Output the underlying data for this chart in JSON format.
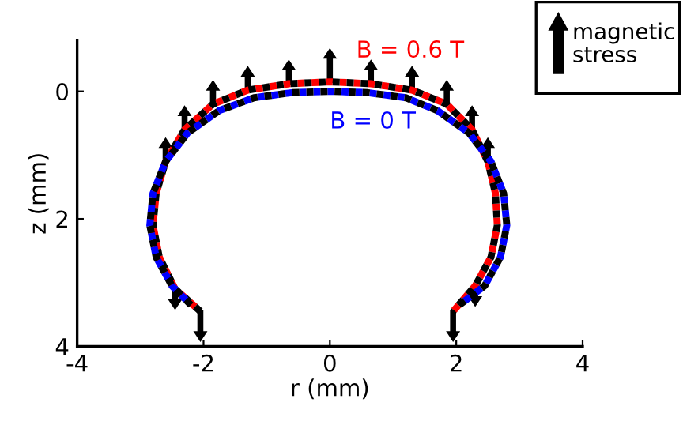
{
  "chart_data": {
    "type": "line",
    "xlabel": "r (mm)",
    "ylabel": "z (mm)",
    "xlim": [
      -4,
      4
    ],
    "xticks": [
      -4,
      -2,
      0,
      2,
      4
    ],
    "ylim": [
      4,
      -0.8
    ],
    "yticks": [
      0,
      2,
      4
    ],
    "grid": false,
    "line_style": "dashed",
    "series": [
      {
        "name": "B = 0 T",
        "color": "#0000ff",
        "x": [
          -2.2,
          -2.5,
          -2.75,
          -2.85,
          -2.8,
          -2.6,
          -2.25,
          -1.75,
          -1.2,
          -0.6,
          0,
          0.6,
          1.2,
          1.7,
          2.2,
          2.55,
          2.75,
          2.8,
          2.7,
          2.45,
          2.05
        ],
        "values": [
          3.35,
          3.05,
          2.6,
          2.1,
          1.6,
          1.1,
          0.65,
          0.3,
          0.1,
          0.02,
          0,
          0.02,
          0.1,
          0.3,
          0.65,
          1.1,
          1.6,
          2.1,
          2.6,
          3.05,
          3.35
        ]
      },
      {
        "name": "B = 0.6 T",
        "color": "#ff0000",
        "x": [
          -2.05,
          -2.45,
          -2.7,
          -2.8,
          -2.75,
          -2.6,
          -2.3,
          -1.85,
          -1.3,
          -0.65,
          0,
          0.65,
          1.3,
          1.85,
          2.25,
          2.5,
          2.62,
          2.65,
          2.55,
          2.3,
          1.95
        ],
        "values": [
          3.45,
          3.1,
          2.6,
          2.1,
          1.6,
          1.1,
          0.6,
          0.2,
          -0.02,
          -0.12,
          -0.15,
          -0.12,
          -0.02,
          0.2,
          0.6,
          1.1,
          1.6,
          2.1,
          2.6,
          3.05,
          3.45
        ]
      }
    ],
    "annotations": [
      "magnetic stress"
    ]
  }
}
